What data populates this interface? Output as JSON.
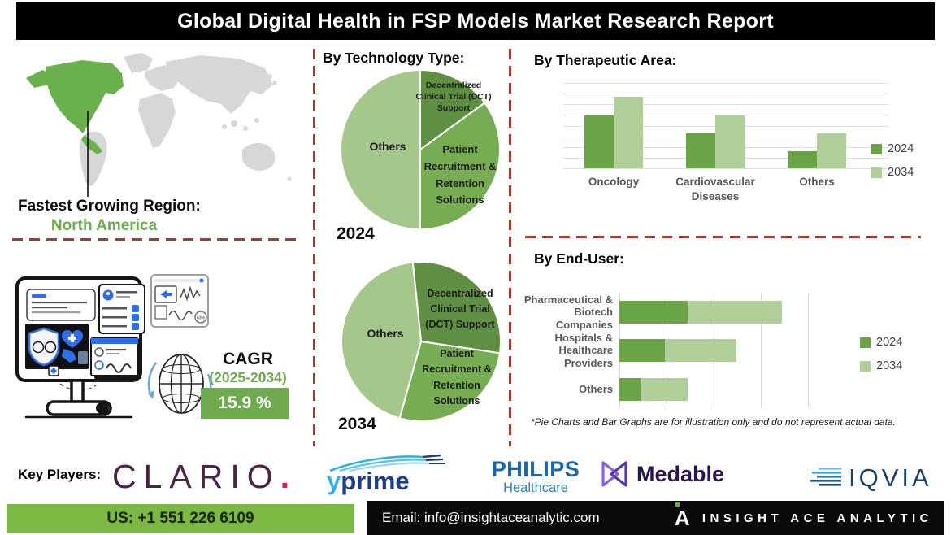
{
  "title": "Global Digital Health in FSP Models Market Research Report",
  "region": {
    "label": "Fastest Growing Region:",
    "value": "North America"
  },
  "cagr": {
    "label": "CAGR",
    "period": "(2025-2034)",
    "value": "15.9 %"
  },
  "footnote": "*Pie Charts and Bar Graphs are for illustration only and do not represent actual data.",
  "key_players": {
    "label": "Key Players:",
    "companies": [
      "Clario",
      "YPrime",
      "Philips Healthcare",
      "Medable",
      "IQVIA"
    ]
  },
  "logos": {
    "clario": {
      "text": "CLARIO",
      "dot": "."
    },
    "yprime": {
      "y": "y",
      "rest": "prime"
    },
    "philips": {
      "name": "PHILIPS",
      "sub": "Healthcare"
    },
    "medable": {
      "name": "Medable"
    },
    "iqvia": {
      "name": "IQVIA"
    }
  },
  "contact": {
    "phone": "US: +1 551 226 6109",
    "email": "Email: info@insightaceanalytic.com",
    "brand": "INSIGHT ACE ANALYTIC",
    "brand_icon": "A"
  },
  "palette": {
    "map_green": "#6ab04c",
    "map_gray": "#d7d7d7",
    "dashed_red": "#a33b30",
    "cagr_green": "#6eab4e",
    "phone_green": "#7cb844",
    "bar_2024": "#6ba447",
    "bar_2034": "#b1d099"
  },
  "chart_data": [
    {
      "id": "technology-2024",
      "type": "pie",
      "title": "By Technology Type:",
      "year_label": "2024",
      "start_angle_deg": 0,
      "slices": [
        {
          "label": "Decentralized Clinical Trial (DCT) Support",
          "value": 15,
          "color": "#5f8f42"
        },
        {
          "label": "Patient Recruitment & Retention Solutions",
          "value": 35,
          "color": "#77ad52"
        },
        {
          "label": "Others",
          "value": 50,
          "color": "#a6c78c"
        }
      ],
      "note": "illustration only"
    },
    {
      "id": "technology-2034",
      "type": "pie",
      "year_label": "2034",
      "start_angle_deg": -6,
      "slices": [
        {
          "label": "Decentralized Clinical Trial (DCT) Support",
          "value": 29,
          "color": "#5f8f42"
        },
        {
          "label": "Patient Recruitment & Retention Solutions",
          "value": 27,
          "color": "#77ad52"
        },
        {
          "label": "Others",
          "value": 44,
          "color": "#a6c78c"
        }
      ],
      "note": "illustration only"
    },
    {
      "id": "therapeutic-area",
      "type": "bar",
      "title": "By Therapeutic Area:",
      "categories": [
        "Oncology",
        "Cardiovascular Diseases",
        "Others"
      ],
      "series": [
        {
          "name": "2024",
          "color": "#6ba447",
          "values": [
            65,
            43,
            21
          ]
        },
        {
          "name": "2034",
          "color": "#b1d099",
          "values": [
            88,
            65,
            43
          ]
        }
      ],
      "ylim": [
        0,
        105
      ],
      "grid": true,
      "legend_position": "right",
      "note": "illustration only"
    },
    {
      "id": "end-user",
      "type": "bar-horizontal-stacked",
      "title": "By End-User:",
      "categories": [
        "Pharmaceutical & Biotech Companies",
        "Hospitals & Healthcare Providers",
        "Others"
      ],
      "series": [
        {
          "name": "2024",
          "color": "#6ba447",
          "values": [
            42,
            28,
            13
          ]
        },
        {
          "name": "2034",
          "color": "#b1d099",
          "values": [
            58,
            44,
            29
          ]
        }
      ],
      "xlim": [
        0,
        166
      ],
      "grid": true,
      "legend_position": "right",
      "note": "illustration only"
    }
  ]
}
